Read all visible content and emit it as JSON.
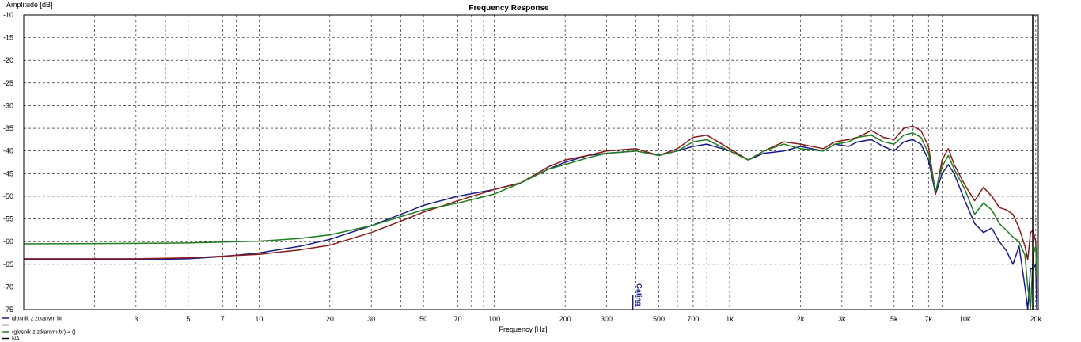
{
  "chart_data": {
    "type": "line",
    "title": "Frequency Response",
    "xlabel": "Frequency [Hz]",
    "ylabel": "Amplitude [dB]",
    "xscale": "log",
    "xlim": [
      1,
      20500
    ],
    "ylim": [
      -75,
      -10
    ],
    "grid": true,
    "x_tick_labels": [
      {
        "value": 3,
        "label": "3"
      },
      {
        "value": 5,
        "label": "5"
      },
      {
        "value": 7,
        "label": "7"
      },
      {
        "value": 10,
        "label": "10"
      },
      {
        "value": 20,
        "label": "20"
      },
      {
        "value": 30,
        "label": "30"
      },
      {
        "value": 50,
        "label": "50"
      },
      {
        "value": 70,
        "label": "70"
      },
      {
        "value": 100,
        "label": "100"
      },
      {
        "value": 200,
        "label": "200"
      },
      {
        "value": 300,
        "label": "300"
      },
      {
        "value": 500,
        "label": "500"
      },
      {
        "value": 700,
        "label": "700"
      },
      {
        "value": 1000,
        "label": "1k"
      },
      {
        "value": 2000,
        "label": "2k"
      },
      {
        "value": 3000,
        "label": "3k"
      },
      {
        "value": 5000,
        "label": "5k"
      },
      {
        "value": 7000,
        "label": "7k"
      },
      {
        "value": 10000,
        "label": "10k"
      },
      {
        "value": 20000,
        "label": "20k"
      }
    ],
    "y_ticks": [
      -10,
      -15,
      -20,
      -25,
      -30,
      -35,
      -40,
      -45,
      -50,
      -55,
      -60,
      -65,
      -70,
      -75
    ],
    "marker": {
      "label": "Gating",
      "x": 400
    },
    "legend": {
      "placement": "bottom-left",
      "entries": [
        {
          "label": "glosnik z ztkanym br",
          "color": "#1a1a8c"
        },
        {
          "label": "",
          "color": "#8b1a1a"
        },
        {
          "label": "(glosnik z ztkanym br) + ()",
          "color": "#1f7f1f"
        },
        {
          "label": "NA",
          "color": "#000000"
        }
      ]
    },
    "series": [
      {
        "color": "#1a1a8c",
        "points": [
          [
            1,
            -64
          ],
          [
            3,
            -64
          ],
          [
            5,
            -63.8
          ],
          [
            7,
            -63.3
          ],
          [
            10,
            -62.5
          ],
          [
            15,
            -61
          ],
          [
            20,
            -59.5
          ],
          [
            30,
            -56.5
          ],
          [
            40,
            -54
          ],
          [
            50,
            -52
          ],
          [
            70,
            -50
          ],
          [
            100,
            -48.5
          ],
          [
            130,
            -47
          ],
          [
            170,
            -44
          ],
          [
            200,
            -42.5
          ],
          [
            250,
            -41
          ],
          [
            300,
            -40.5
          ],
          [
            400,
            -40
          ],
          [
            500,
            -41
          ],
          [
            600,
            -40
          ],
          [
            700,
            -39
          ],
          [
            800,
            -38.5
          ],
          [
            1000,
            -40
          ],
          [
            1200,
            -42
          ],
          [
            1400,
            -40.5
          ],
          [
            1700,
            -40
          ],
          [
            2000,
            -39
          ],
          [
            2500,
            -40
          ],
          [
            2800,
            -38.5
          ],
          [
            3200,
            -39
          ],
          [
            3500,
            -38
          ],
          [
            4000,
            -37.5
          ],
          [
            4500,
            -39
          ],
          [
            5000,
            -40
          ],
          [
            5500,
            -38
          ],
          [
            6000,
            -37.5
          ],
          [
            6500,
            -38.5
          ],
          [
            7000,
            -42
          ],
          [
            7500,
            -49.5
          ],
          [
            8000,
            -45
          ],
          [
            8500,
            -43
          ],
          [
            9000,
            -45
          ],
          [
            10000,
            -51
          ],
          [
            11000,
            -56
          ],
          [
            12000,
            -58
          ],
          [
            13000,
            -57
          ],
          [
            14000,
            -60
          ],
          [
            15000,
            -62
          ],
          [
            16000,
            -65
          ],
          [
            17000,
            -61
          ],
          [
            18000,
            -70
          ],
          [
            18500,
            -75
          ],
          [
            19000,
            -66
          ],
          [
            19500,
            -66
          ],
          [
            20000,
            -65
          ],
          [
            20200,
            -75
          ]
        ]
      },
      {
        "color": "#8b1a1a",
        "points": [
          [
            1,
            -63.8
          ],
          [
            3,
            -63.8
          ],
          [
            5,
            -63.6
          ],
          [
            7,
            -63.2
          ],
          [
            10,
            -62.8
          ],
          [
            15,
            -61.8
          ],
          [
            20,
            -60.8
          ],
          [
            30,
            -58
          ],
          [
            40,
            -55.5
          ],
          [
            50,
            -53.5
          ],
          [
            70,
            -51
          ],
          [
            100,
            -48.5
          ],
          [
            130,
            -47
          ],
          [
            170,
            -43.5
          ],
          [
            200,
            -42
          ],
          [
            250,
            -41
          ],
          [
            300,
            -40
          ],
          [
            400,
            -39.5
          ],
          [
            500,
            -41
          ],
          [
            600,
            -39.5
          ],
          [
            700,
            -37
          ],
          [
            800,
            -36.5
          ],
          [
            1000,
            -39.5
          ],
          [
            1200,
            -42
          ],
          [
            1400,
            -40
          ],
          [
            1700,
            -38
          ],
          [
            2000,
            -38.5
          ],
          [
            2500,
            -39.5
          ],
          [
            2800,
            -38
          ],
          [
            3200,
            -37.5
          ],
          [
            3500,
            -37
          ],
          [
            4000,
            -35.5
          ],
          [
            4500,
            -37
          ],
          [
            5000,
            -37.5
          ],
          [
            5500,
            -35
          ],
          [
            6000,
            -34.5
          ],
          [
            6500,
            -35.5
          ],
          [
            7000,
            -39
          ],
          [
            7500,
            -49.5
          ],
          [
            8000,
            -42
          ],
          [
            8500,
            -39.5
          ],
          [
            9000,
            -43
          ],
          [
            10000,
            -47.5
          ],
          [
            11000,
            -51
          ],
          [
            12000,
            -48
          ],
          [
            13000,
            -50
          ],
          [
            14000,
            -52.5
          ],
          [
            15000,
            -53
          ],
          [
            16000,
            -54
          ],
          [
            17000,
            -57
          ],
          [
            18000,
            -61
          ],
          [
            18500,
            -64
          ],
          [
            19000,
            -58
          ],
          [
            19500,
            -57.5
          ],
          [
            20000,
            -60
          ],
          [
            20200,
            -67
          ]
        ]
      },
      {
        "color": "#1f7f1f",
        "points": [
          [
            1,
            -60.5
          ],
          [
            3,
            -60.4
          ],
          [
            5,
            -60.3
          ],
          [
            7,
            -60.1
          ],
          [
            10,
            -59.9
          ],
          [
            15,
            -59.3
          ],
          [
            20,
            -58.5
          ],
          [
            30,
            -56.5
          ],
          [
            40,
            -54.5
          ],
          [
            50,
            -53
          ],
          [
            70,
            -51.5
          ],
          [
            100,
            -49.5
          ],
          [
            130,
            -47
          ],
          [
            170,
            -44
          ],
          [
            200,
            -43
          ],
          [
            250,
            -41.5
          ],
          [
            300,
            -40.5
          ],
          [
            400,
            -40
          ],
          [
            500,
            -41
          ],
          [
            600,
            -40
          ],
          [
            700,
            -38
          ],
          [
            800,
            -37.5
          ],
          [
            1000,
            -40
          ],
          [
            1200,
            -42
          ],
          [
            1400,
            -40
          ],
          [
            1700,
            -38.5
          ],
          [
            2000,
            -39.5
          ],
          [
            2500,
            -40
          ],
          [
            2800,
            -38.5
          ],
          [
            3200,
            -38
          ],
          [
            3500,
            -37
          ],
          [
            4000,
            -36.5
          ],
          [
            4500,
            -38
          ],
          [
            5000,
            -38.5
          ],
          [
            5500,
            -36.5
          ],
          [
            6000,
            -36
          ],
          [
            6500,
            -37
          ],
          [
            7000,
            -40.5
          ],
          [
            7500,
            -49
          ],
          [
            8000,
            -43.5
          ],
          [
            8500,
            -41
          ],
          [
            9000,
            -44
          ],
          [
            10000,
            -48.5
          ],
          [
            11000,
            -54
          ],
          [
            12000,
            -51.5
          ],
          [
            13000,
            -53
          ],
          [
            14000,
            -56
          ],
          [
            15000,
            -57.5
          ],
          [
            16000,
            -59
          ],
          [
            17000,
            -60
          ],
          [
            18000,
            -63
          ],
          [
            18500,
            -70
          ],
          [
            19000,
            -75
          ],
          [
            19500,
            -63
          ],
          [
            20000,
            -61
          ],
          [
            20200,
            -68
          ]
        ]
      }
    ]
  }
}
